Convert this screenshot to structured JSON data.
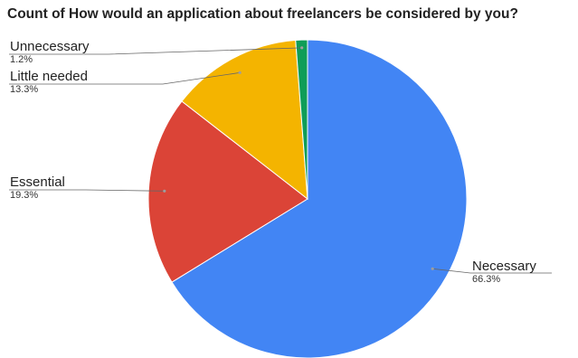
{
  "chart_data": {
    "type": "pie",
    "title": "Count of How would an application about freelancers be considered by you?",
    "slices": [
      {
        "label": "Necessary",
        "value": 66.3,
        "percent_label": "66.3%",
        "color": "#4285f4"
      },
      {
        "label": "Essential",
        "value": 19.3,
        "percent_label": "19.3%",
        "color": "#db4437"
      },
      {
        "label": "Little needed",
        "value": 13.3,
        "percent_label": "13.3%",
        "color": "#f4b400"
      },
      {
        "label": "Unnecessary",
        "value": 1.2,
        "percent_label": "1.2%",
        "color": "#0f9d58"
      }
    ],
    "legend": "none"
  }
}
